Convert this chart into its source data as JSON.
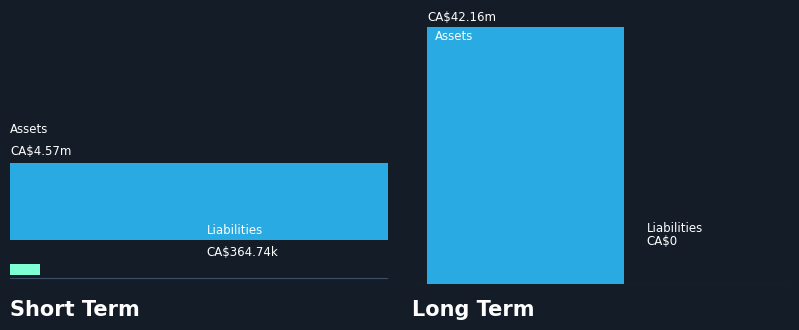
{
  "background_color": "#131c27",
  "text_color": "#ffffff",
  "groups": [
    "Short Term",
    "Long Term"
  ],
  "assets": [
    4.57,
    42.16
  ],
  "liabilities": [
    0.36474,
    0.0
  ],
  "asset_color": "#29aae2",
  "liability_color": "#7fffd4",
  "asset_value_labels": [
    "CA$4.57m",
    "CA$42.16m"
  ],
  "liability_value_labels": [
    "CA$364.74k",
    "CA$0"
  ],
  "assets_label": "Assets",
  "liabilities_label": "Liabilities",
  "group_label_fontsize": 15,
  "annotation_fontsize": 8.5,
  "baseline_color": "#3a5068"
}
